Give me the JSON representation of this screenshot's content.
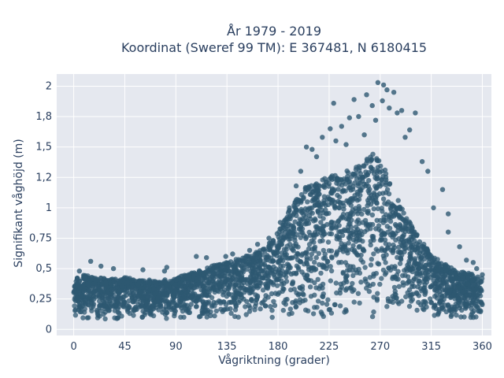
{
  "chart_data": {
    "type": "scatter",
    "title_lines": [
      "År 1979 - 2019",
      "Koordinat (Sweref 99 TM): E 367481, N 6180415"
    ],
    "xlabel": "Vågriktning (grader)",
    "ylabel": "Signifikant våghöjd (m)",
    "xlim": [
      -15,
      368
    ],
    "ylim": [
      -0.05,
      2.1
    ],
    "x_ticks": [
      0,
      45,
      90,
      135,
      180,
      225,
      270,
      315,
      360
    ],
    "x_tick_labels": [
      "0",
      "45",
      "90",
      "135",
      "180",
      "225",
      "270",
      "315",
      "360"
    ],
    "y_ticks": [
      0,
      0.25,
      0.5,
      0.75,
      1,
      1.25,
      1.5,
      1.75,
      2
    ],
    "y_tick_labels": [
      "0",
      "0,25",
      "0,5",
      "0,75",
      "1",
      "1,2",
      "1,5",
      "1,8",
      "2"
    ],
    "grid": true,
    "legend": "none",
    "series": [
      {
        "x_range": [
          0,
          360
        ],
        "x_step": 5,
        "min_values": [
          0.08,
          0.08,
          0.08,
          0.08,
          0.08,
          0.08,
          0.08,
          0.08,
          0.08,
          0.08,
          0.08,
          0.08,
          0.08,
          0.08,
          0.08,
          0.08,
          0.08,
          0.08,
          0.08,
          0.08,
          0.08,
          0.08,
          0.08,
          0.08,
          0.08,
          0.08,
          0.08,
          0.08,
          0.08,
          0.08,
          0.08,
          0.08,
          0.08,
          0.08,
          0.08,
          0.08,
          0.08,
          0.08,
          0.08,
          0.08,
          0.08,
          0.08,
          0.08,
          0.08,
          0.08,
          0.08,
          0.08,
          0.08,
          0.08,
          0.08,
          0.08,
          0.08,
          0.08,
          0.08,
          0.08,
          0.08,
          0.08,
          0.08,
          0.08,
          0.08,
          0.08,
          0.08,
          0.08,
          0.08,
          0.08,
          0.08,
          0.08,
          0.08,
          0.08,
          0.08,
          0.08,
          0.08,
          0.08
        ],
        "max_values": [
          0.42,
          0.44,
          0.45,
          0.43,
          0.42,
          0.43,
          0.41,
          0.42,
          0.41,
          0.43,
          0.42,
          0.41,
          0.4,
          0.41,
          0.4,
          0.39,
          0.41,
          0.4,
          0.42,
          0.44,
          0.45,
          0.47,
          0.49,
          0.5,
          0.52,
          0.53,
          0.54,
          0.56,
          0.57,
          0.58,
          0.6,
          0.62,
          0.63,
          0.66,
          0.7,
          0.74,
          0.8,
          0.88,
          0.98,
          1.05,
          1.12,
          1.18,
          1.2,
          1.22,
          1.24,
          1.26,
          1.27,
          1.28,
          1.3,
          1.32,
          1.35,
          1.38,
          1.42,
          1.45,
          1.4,
          1.3,
          1.18,
          1.08,
          0.98,
          0.9,
          0.82,
          0.75,
          0.68,
          0.62,
          0.58,
          0.55,
          0.52,
          0.5,
          0.48,
          0.47,
          0.46,
          0.44,
          0.43
        ]
      }
    ],
    "outliers": [
      {
        "x": 268,
        "y": 2.03
      },
      {
        "x": 273,
        "y": 2.01
      },
      {
        "x": 276,
        "y": 1.97
      },
      {
        "x": 282,
        "y": 1.95
      },
      {
        "x": 258,
        "y": 1.93
      },
      {
        "x": 247,
        "y": 1.89
      },
      {
        "x": 229,
        "y": 1.86
      },
      {
        "x": 289,
        "y": 1.8
      },
      {
        "x": 263,
        "y": 1.84
      },
      {
        "x": 278,
        "y": 1.82
      },
      {
        "x": 285,
        "y": 1.78
      },
      {
        "x": 226,
        "y": 1.65
      },
      {
        "x": 243,
        "y": 1.74
      },
      {
        "x": 251,
        "y": 1.75
      },
      {
        "x": 236,
        "y": 1.67
      },
      {
        "x": 219,
        "y": 1.58
      },
      {
        "x": 231,
        "y": 1.55
      },
      {
        "x": 205,
        "y": 1.5
      },
      {
        "x": 210,
        "y": 1.48
      },
      {
        "x": 296,
        "y": 1.64
      },
      {
        "x": 301,
        "y": 1.78
      },
      {
        "x": 307,
        "y": 1.38
      },
      {
        "x": 312,
        "y": 1.3
      },
      {
        "x": 325,
        "y": 1.15
      },
      {
        "x": 330,
        "y": 0.95
      },
      {
        "x": 317,
        "y": 1.0
      },
      {
        "x": 330,
        "y": 0.8
      },
      {
        "x": 340,
        "y": 0.68
      },
      {
        "x": 346,
        "y": 0.57
      },
      {
        "x": 352,
        "y": 0.55
      },
      {
        "x": 355,
        "y": 0.5
      },
      {
        "x": 360,
        "y": 0.45
      },
      {
        "x": 15,
        "y": 0.56
      },
      {
        "x": 5,
        "y": 0.48
      },
      {
        "x": 24,
        "y": 0.52
      },
      {
        "x": 35,
        "y": 0.5
      },
      {
        "x": 61,
        "y": 0.49
      },
      {
        "x": 80,
        "y": 0.48
      },
      {
        "x": 82,
        "y": 0.51
      },
      {
        "x": 108,
        "y": 0.6
      },
      {
        "x": 117,
        "y": 0.59
      },
      {
        "x": 134,
        "y": 0.6
      },
      {
        "x": 140,
        "y": 0.62
      },
      {
        "x": 155,
        "y": 0.65
      },
      {
        "x": 162,
        "y": 0.7
      },
      {
        "x": 172,
        "y": 0.75
      },
      {
        "x": 182,
        "y": 0.88
      },
      {
        "x": 190,
        "y": 1.0
      },
      {
        "x": 196,
        "y": 1.18
      },
      {
        "x": 200,
        "y": 1.3
      },
      {
        "x": 214,
        "y": 1.42
      },
      {
        "x": 240,
        "y": 1.52
      },
      {
        "x": 256,
        "y": 1.6
      },
      {
        "x": 266,
        "y": 1.72
      },
      {
        "x": 272,
        "y": 1.88
      },
      {
        "x": 292,
        "y": 1.58
      }
    ],
    "marker_color": "#2e5872",
    "plot_bg": "#e5e8ef",
    "grid_color": "#ffffff",
    "text_color": "#2a3f5f"
  }
}
